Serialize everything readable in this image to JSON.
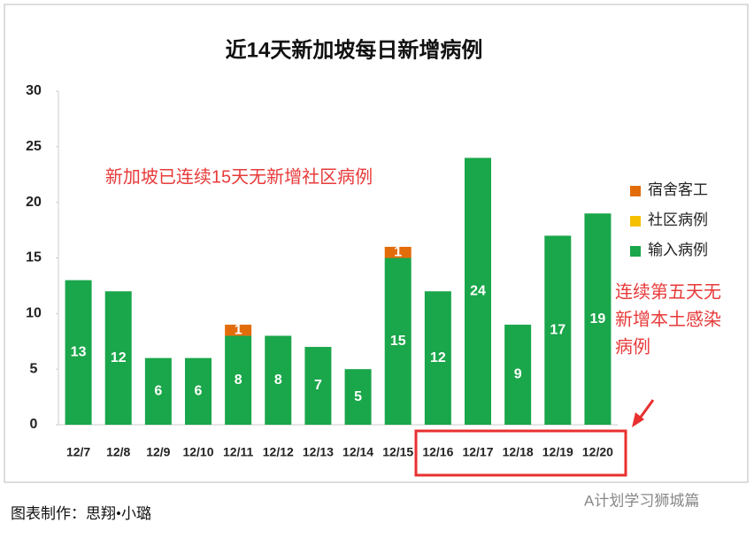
{
  "chart_data": {
    "type": "stacked_bar",
    "title": "近14天新加坡每日新增病例",
    "categories": [
      "12/7",
      "12/8",
      "12/9",
      "12/10",
      "12/11",
      "12/12",
      "12/13",
      "12/14",
      "12/15",
      "12/16",
      "12/17",
      "12/18",
      "12/19",
      "12/20"
    ],
    "series": [
      {
        "name": "输入病例",
        "color": "#1aa64a",
        "values": [
          13,
          12,
          6,
          6,
          8,
          8,
          7,
          5,
          15,
          12,
          24,
          9,
          17,
          19
        ]
      },
      {
        "name": "社区病例",
        "color": "#f5c000",
        "values": [
          0,
          0,
          0,
          0,
          0,
          0,
          0,
          0,
          0,
          0,
          0,
          0,
          0,
          0
        ]
      },
      {
        "name": "宿舍客工",
        "color": "#e36c0a",
        "values": [
          0,
          0,
          0,
          0,
          1,
          0,
          0,
          0,
          1,
          0,
          0,
          0,
          0,
          0
        ]
      }
    ],
    "ylim": [
      0,
      30
    ],
    "yticks": [
      0,
      5,
      10,
      15,
      20,
      25,
      30
    ],
    "grid": false,
    "legend": "right",
    "annotations": [
      "新加坡已连续15天无新增社区病例",
      "连续第五天无",
      "新增本土感染",
      "病例"
    ]
  },
  "footer": {
    "credit": "图表制作：思翔•小璐",
    "watermark": "A计划学习狮城篇"
  }
}
